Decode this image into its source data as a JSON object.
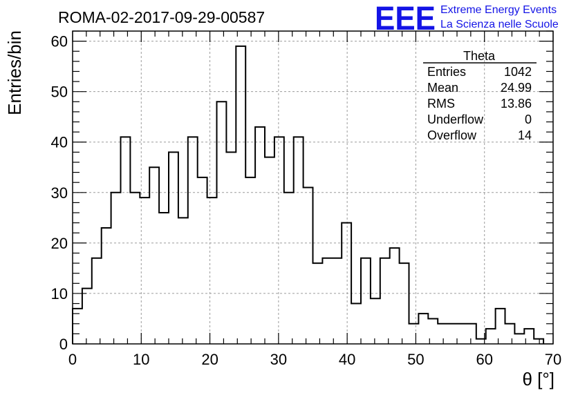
{
  "chart_data": {
    "type": "bar",
    "title": "ROMA-02-2017-09-29-00587",
    "xlabel": "θ [°]",
    "ylabel": "Entries/bin",
    "xlim": [
      0,
      70
    ],
    "ylim": [
      0,
      62
    ],
    "grid": true,
    "bin_width": 1.4,
    "x_ticks": [
      0,
      10,
      20,
      30,
      40,
      50,
      60,
      70
    ],
    "y_ticks": [
      0,
      10,
      20,
      30,
      40,
      50,
      60
    ],
    "values": [
      7,
      11,
      17,
      23,
      30,
      41,
      30,
      29,
      35,
      26,
      38,
      25,
      41,
      33,
      29,
      48,
      38,
      59,
      33,
      43,
      37,
      41,
      30,
      41,
      31,
      16,
      17,
      17,
      24,
      8,
      17,
      9,
      17,
      19,
      16,
      4,
      6,
      5,
      4,
      4,
      4,
      4,
      1,
      3,
      7,
      4,
      2,
      3,
      1
    ],
    "stats_box": {
      "title": "Theta",
      "placement": "top-right",
      "rows": [
        {
          "label": "Entries",
          "value": "1042"
        },
        {
          "label": "Mean",
          "value": "24.99"
        },
        {
          "label": "RMS",
          "value": "13.86"
        },
        {
          "label": "Underflow",
          "value": "0"
        },
        {
          "label": "Overflow",
          "value": "14"
        }
      ]
    }
  },
  "logo": {
    "big": "EEE",
    "line1": "Extreme Energy Events",
    "line2": "La Scienza nelle Scuole"
  },
  "colors": {
    "histogram": "#000000",
    "logo": "#1414e6",
    "grid": "#9a9a9a"
  }
}
